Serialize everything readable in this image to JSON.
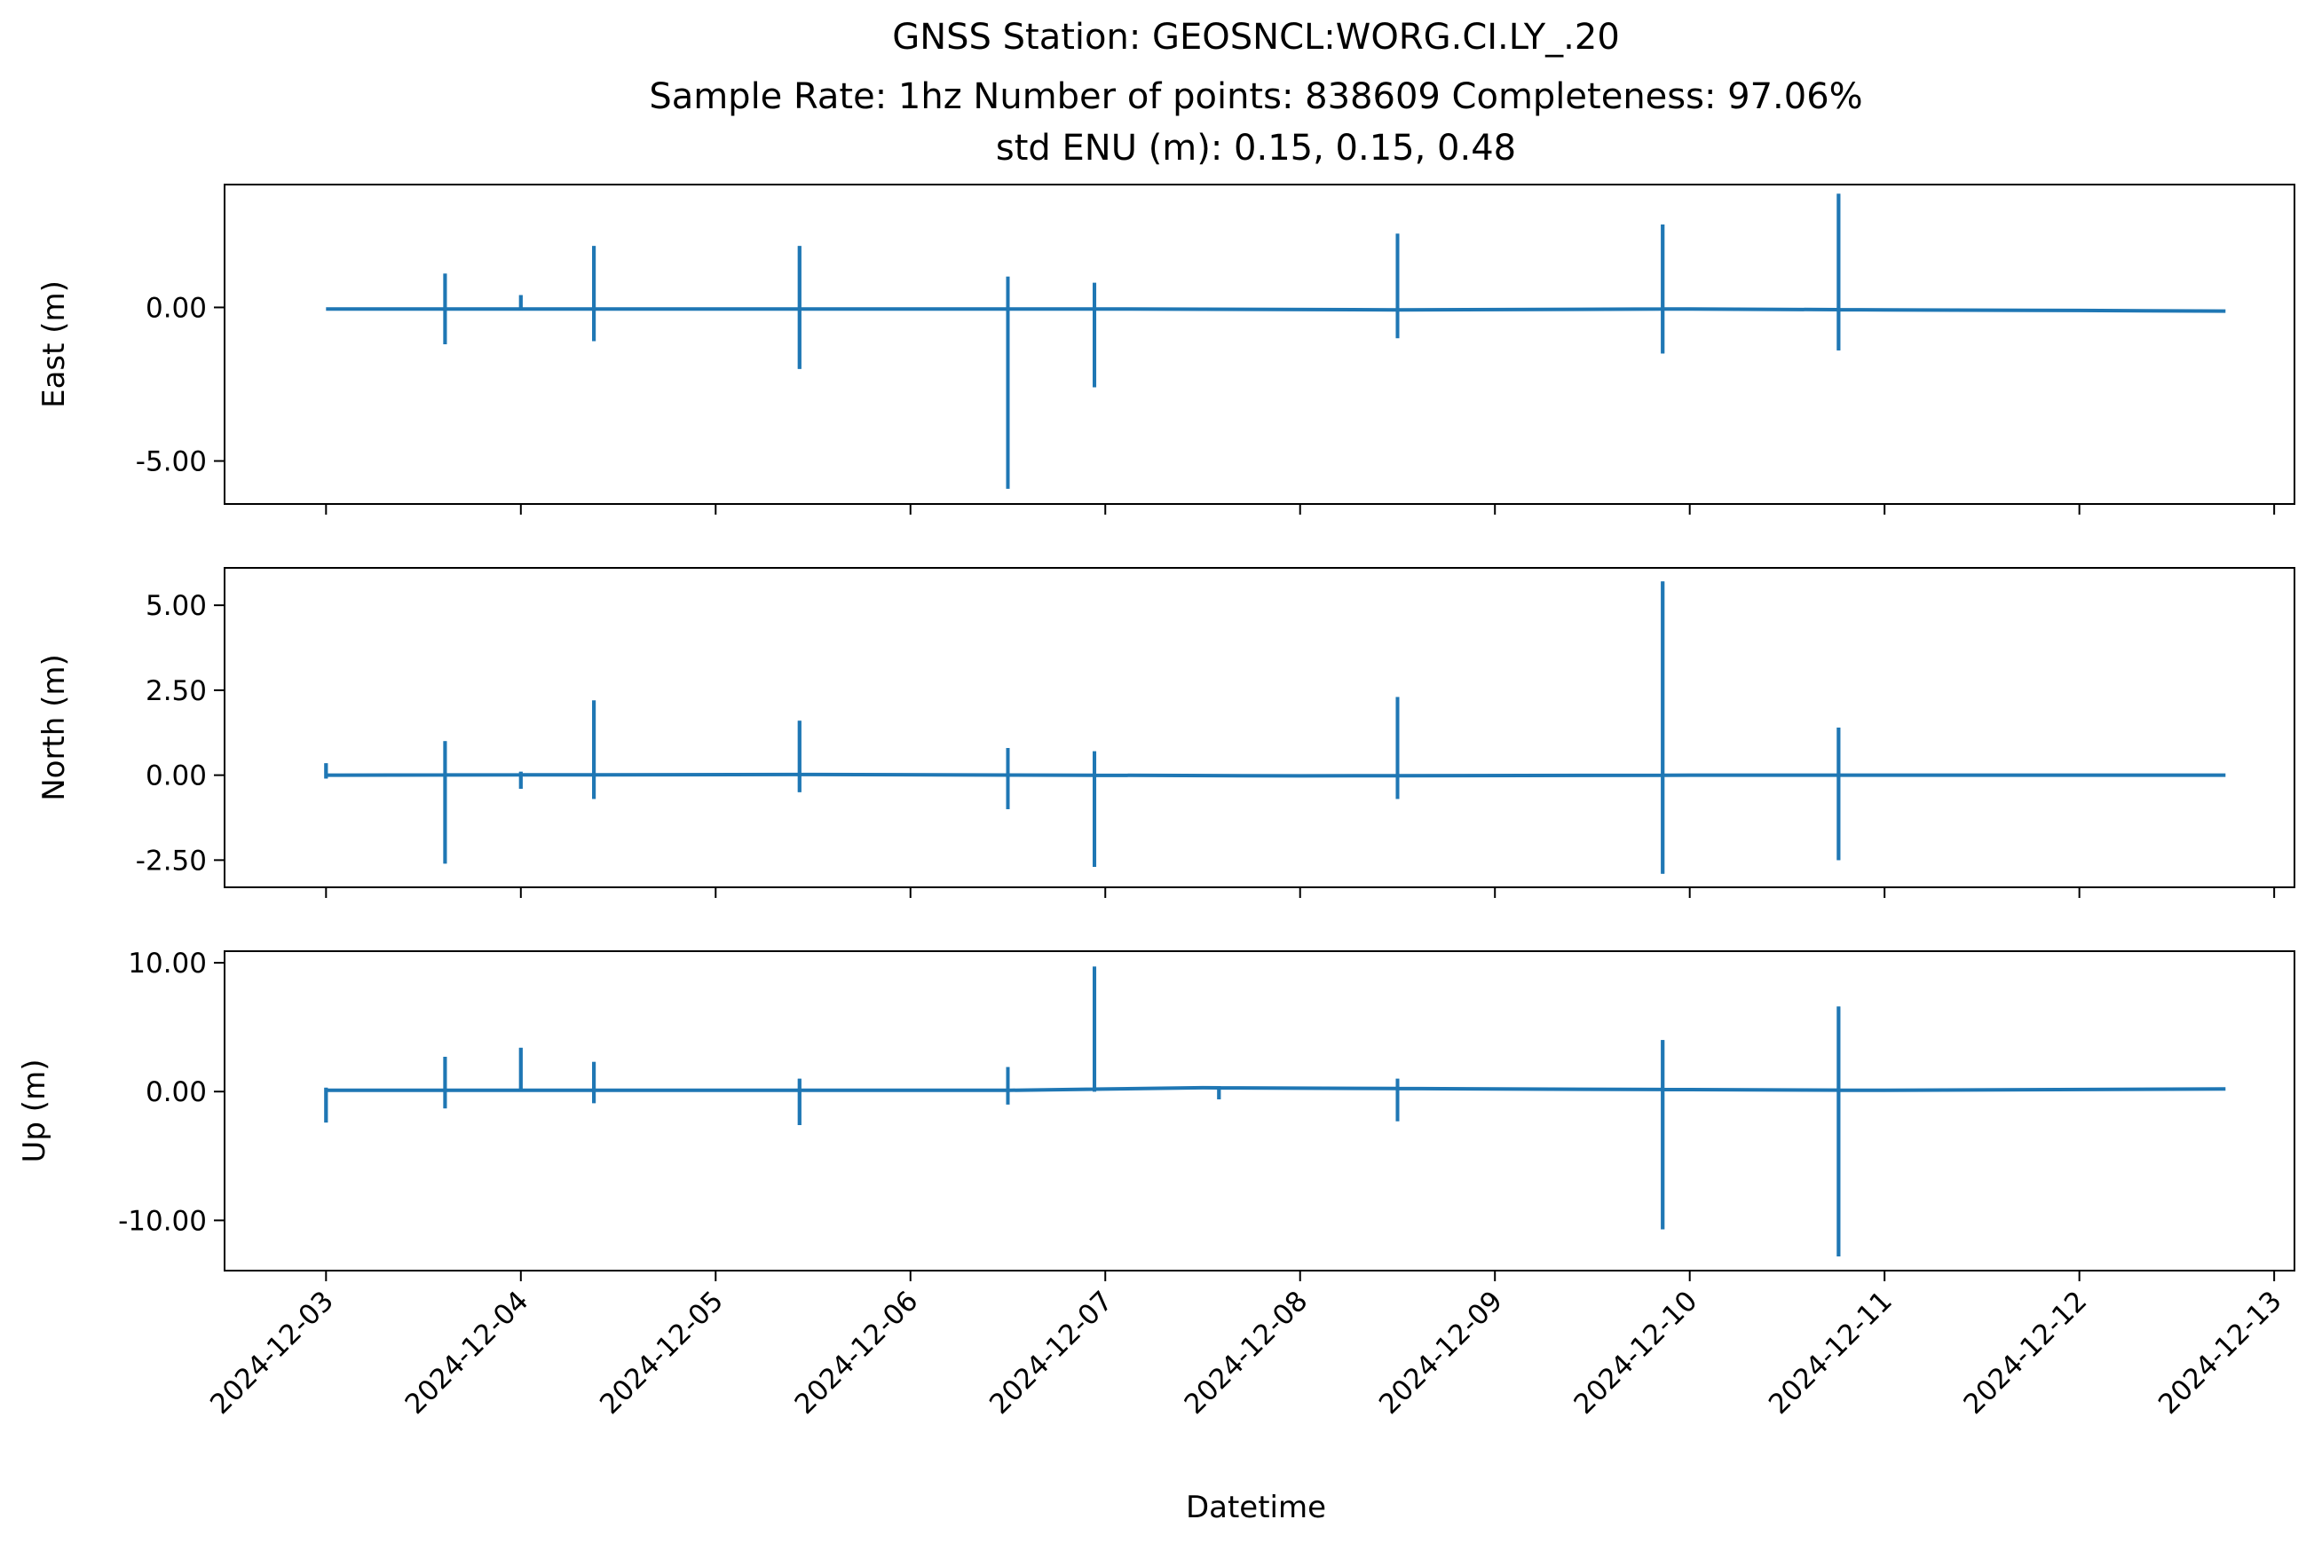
{
  "figure": {
    "title_lines": [
      "GNSS Station: GEOSNCL:WORG.CI.LY_.20",
      "Sample Rate: 1hz   Number of points: 838609    Completeness:  97.06%",
      "std ENU (m):  0.15, 0.15, 0.48"
    ],
    "xlabel": "Datetime",
    "line_color": "#1f77b4"
  },
  "chart_data": [
    {
      "type": "line",
      "ylabel": "East (m)",
      "ylim": [
        -6.4,
        4.0
      ],
      "yticks": [
        0,
        -5
      ],
      "ytick_labels": [
        "0.00",
        "-5.00"
      ],
      "x_range": [
        "2024-12-02T11:30",
        "2024-12-13T02:30"
      ],
      "baseline": [
        [
          "2024-12-03T00:00",
          -0.05
        ],
        [
          "2024-12-05T00:00",
          -0.05
        ],
        [
          "2024-12-07T00:00",
          -0.05
        ],
        [
          "2024-12-08T12:00",
          -0.08
        ],
        [
          "2024-12-10T00:00",
          -0.05
        ],
        [
          "2024-12-11T00:00",
          -0.08
        ],
        [
          "2024-12-12T00:00",
          -0.1
        ],
        [
          "2024-12-12T18:00",
          -0.12
        ]
      ],
      "spikes": [
        {
          "t": "2024-12-03T14:40",
          "hi": 1.1,
          "lo": -1.2
        },
        {
          "t": "2024-12-04T00:00",
          "hi": 0.4,
          "lo": -0.1
        },
        {
          "t": "2024-12-04T09:00",
          "hi": 2.0,
          "lo": -1.1
        },
        {
          "t": "2024-12-05T10:20",
          "hi": 2.0,
          "lo": -2.0
        },
        {
          "t": "2024-12-06T12:00",
          "hi": 1.0,
          "lo": -5.9
        },
        {
          "t": "2024-12-06T22:40",
          "hi": 0.8,
          "lo": -2.6
        },
        {
          "t": "2024-12-08T12:00",
          "hi": 2.4,
          "lo": -1.0
        },
        {
          "t": "2024-12-09T20:40",
          "hi": 2.7,
          "lo": -1.5
        },
        {
          "t": "2024-12-10T18:20",
          "hi": 3.7,
          "lo": -1.4
        }
      ]
    },
    {
      "type": "line",
      "ylabel": "North (m)",
      "ylim": [
        -3.3,
        6.1
      ],
      "yticks": [
        5,
        2.5,
        0,
        -2.5
      ],
      "ytick_labels": [
        "5.00",
        "2.50",
        "0.00",
        "-2.50"
      ],
      "x_range": [
        "2024-12-02T11:30",
        "2024-12-13T02:30"
      ],
      "baseline": [
        [
          "2024-12-03T00:00",
          0.0
        ],
        [
          "2024-12-05T12:00",
          0.02
        ],
        [
          "2024-12-08T00:00",
          -0.02
        ],
        [
          "2024-12-10T00:00",
          0.0
        ],
        [
          "2024-12-12T18:00",
          0.0
        ]
      ],
      "spikes": [
        {
          "t": "2024-12-03T00:00",
          "hi": 0.35,
          "lo": -0.1
        },
        {
          "t": "2024-12-03T14:40",
          "hi": 1.0,
          "lo": -2.6
        },
        {
          "t": "2024-12-04T00:00",
          "hi": 0.1,
          "lo": -0.4
        },
        {
          "t": "2024-12-04T09:00",
          "hi": 2.2,
          "lo": -0.7
        },
        {
          "t": "2024-12-05T10:20",
          "hi": 1.6,
          "lo": -0.5
        },
        {
          "t": "2024-12-06T12:00",
          "hi": 0.8,
          "lo": -1.0
        },
        {
          "t": "2024-12-06T22:40",
          "hi": 0.7,
          "lo": -2.7
        },
        {
          "t": "2024-12-08T12:00",
          "hi": 2.3,
          "lo": -0.7
        },
        {
          "t": "2024-12-09T20:40",
          "hi": 5.7,
          "lo": -2.9
        },
        {
          "t": "2024-12-10T18:20",
          "hi": 1.4,
          "lo": -2.5
        }
      ]
    },
    {
      "type": "line",
      "ylabel": "Up (m)",
      "ylim": [
        -13.9,
        10.9
      ],
      "yticks": [
        10,
        0,
        -10
      ],
      "ytick_labels": [
        "10.00",
        "0.00",
        "-10.00"
      ],
      "x_range": [
        "2024-12-02T11:30",
        "2024-12-13T02:30"
      ],
      "baseline": [
        [
          "2024-12-03T00:00",
          0.1
        ],
        [
          "2024-12-06T12:00",
          0.1
        ],
        [
          "2024-12-07T12:00",
          0.3
        ],
        [
          "2024-12-09T00:00",
          0.2
        ],
        [
          "2024-12-11T00:00",
          0.1
        ],
        [
          "2024-12-12T18:00",
          0.2
        ]
      ],
      "spikes": [
        {
          "t": "2024-12-03T00:00",
          "hi": 0.3,
          "lo": -2.4
        },
        {
          "t": "2024-12-03T14:40",
          "hi": 2.7,
          "lo": -1.3
        },
        {
          "t": "2024-12-04T00:00",
          "hi": 3.4,
          "lo": 0.0
        },
        {
          "t": "2024-12-04T09:00",
          "hi": 2.3,
          "lo": -0.9
        },
        {
          "t": "2024-12-05T10:20",
          "hi": 1.0,
          "lo": -2.6
        },
        {
          "t": "2024-12-06T12:00",
          "hi": 1.9,
          "lo": -1.0
        },
        {
          "t": "2024-12-06T22:40",
          "hi": 9.7,
          "lo": 0.0
        },
        {
          "t": "2024-12-07T14:00",
          "hi": 0.2,
          "lo": -0.6
        },
        {
          "t": "2024-12-08T12:00",
          "hi": 1.0,
          "lo": -2.3
        },
        {
          "t": "2024-12-09T20:40",
          "hi": 4.0,
          "lo": -10.7
        },
        {
          "t": "2024-12-10T18:20",
          "hi": 6.6,
          "lo": -12.8
        }
      ]
    }
  ],
  "x_axis": {
    "ticks": [
      "2024-12-03",
      "2024-12-04",
      "2024-12-05",
      "2024-12-06",
      "2024-12-07",
      "2024-12-08",
      "2024-12-09",
      "2024-12-10",
      "2024-12-11",
      "2024-12-12",
      "2024-12-13"
    ],
    "tick_labels": [
      "2024-12-03",
      "2024-12-04",
      "2024-12-05",
      "2024-12-06",
      "2024-12-07",
      "2024-12-08",
      "2024-12-09",
      "2024-12-10",
      "2024-12-11",
      "2024-12-12",
      "2024-12-13"
    ]
  }
}
